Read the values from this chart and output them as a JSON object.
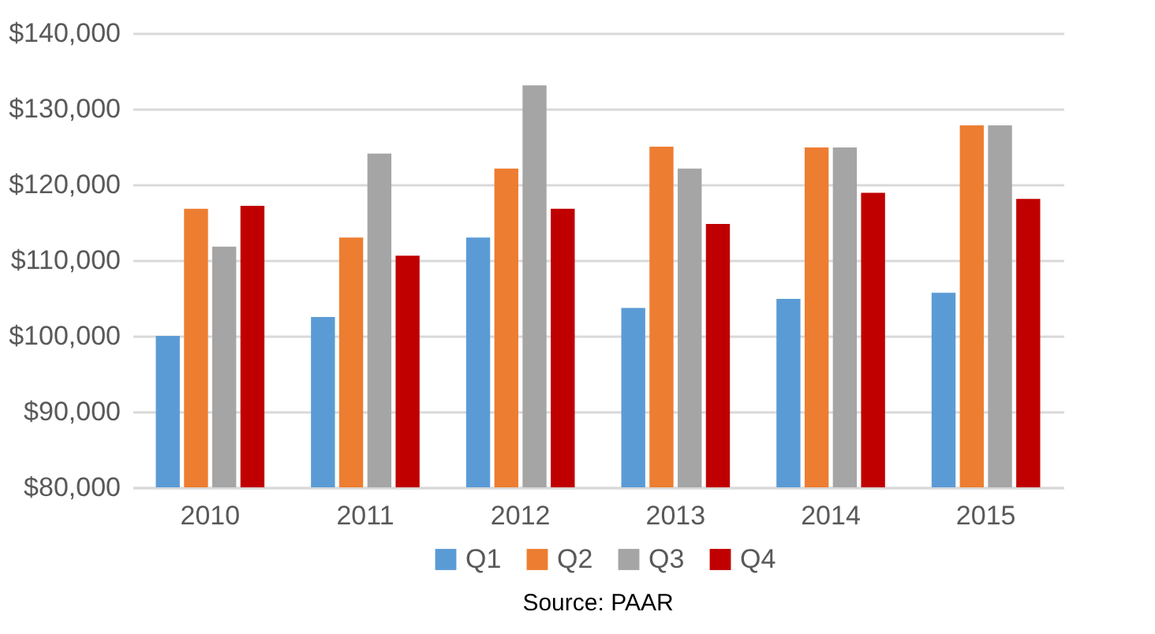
{
  "chart_data": {
    "type": "bar",
    "categories": [
      "2010",
      "2011",
      "2012",
      "2013",
      "2014",
      "2015"
    ],
    "series": [
      {
        "name": "Q1",
        "color": "#5b9bd5",
        "values": [
          100000,
          102500,
          113000,
          103700,
          104900,
          105700
        ]
      },
      {
        "name": "Q2",
        "color": "#ed7d31",
        "values": [
          116800,
          113000,
          122100,
          125000,
          124900,
          127800
        ]
      },
      {
        "name": "Q3",
        "color": "#a5a5a5",
        "values": [
          111800,
          124100,
          133100,
          122100,
          124900,
          127800
        ]
      },
      {
        "name": "Q4",
        "color": "#c00000",
        "values": [
          117200,
          110600,
          116800,
          114800,
          118900,
          118100
        ]
      }
    ],
    "ylim": [
      80000,
      140000
    ],
    "yticks": [
      {
        "value": 80000,
        "label": "$80,000"
      },
      {
        "value": 90000,
        "label": "$90,000"
      },
      {
        "value": 100000,
        "label": "$100,000"
      },
      {
        "value": 110000,
        "label": "$110,000"
      },
      {
        "value": 120000,
        "label": "$120,000"
      },
      {
        "value": 130000,
        "label": "$130,000"
      },
      {
        "value": 140000,
        "label": "$140,000"
      }
    ],
    "grid": "y",
    "legend": "bottom",
    "annotations": [
      "Source: PAAR"
    ]
  }
}
